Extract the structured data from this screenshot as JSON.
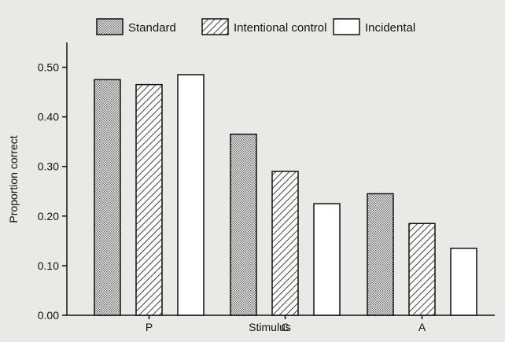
{
  "chart_data": {
    "type": "bar",
    "categories": [
      "P",
      "C",
      "A"
    ],
    "series": [
      {
        "name": "Standard",
        "pattern": "dots",
        "values": [
          0.475,
          0.365,
          0.245
        ]
      },
      {
        "name": "Intentional control",
        "pattern": "hatch",
        "values": [
          0.465,
          0.29,
          0.185
        ]
      },
      {
        "name": "Incidental",
        "pattern": "blank",
        "values": [
          0.485,
          0.225,
          0.135
        ]
      }
    ],
    "xlabel": "Stimulus",
    "ylabel": "Proportion correct",
    "ylim": [
      0,
      0.55
    ],
    "yticks": [
      "0.00",
      "0.10",
      "0.20",
      "0.30",
      "0.40",
      "0.50"
    ],
    "legend_position": "top",
    "grid": false
  },
  "colors": {
    "ink": "#111111",
    "bar_fill": "#ffffff",
    "dots": "#555555",
    "background": "#e9e9e6"
  }
}
